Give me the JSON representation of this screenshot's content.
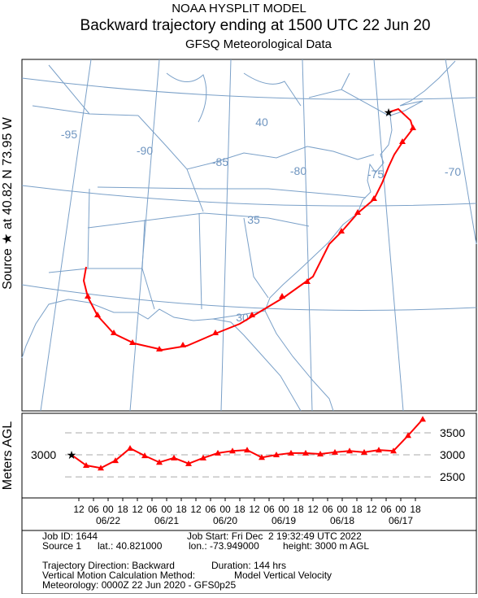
{
  "header": {
    "title": "NOAA HYSPLIT MODEL",
    "subtitle": "Backward trajectory ending at 1500 UTC 22 Jun 20",
    "data_source": "GFSQ Meteorological Data"
  },
  "source_label": "Source ★ at 40.82 N 73.95 W",
  "map": {
    "lon_labels": [
      "-95",
      "-90",
      "-85",
      "-80",
      "-75",
      "-70"
    ],
    "lat_labels": [
      "40",
      "35",
      "30"
    ]
  },
  "height_plot": {
    "type": "line",
    "y_label": "Meters AGL",
    "source_height": 3000,
    "x": [
      0,
      6,
      12,
      18,
      24,
      30,
      36,
      42,
      48,
      54,
      60,
      66,
      72,
      78,
      84,
      90,
      96,
      102,
      108,
      114,
      120,
      126,
      132,
      138,
      144
    ],
    "values": [
      3000,
      2760,
      2700,
      2870,
      3150,
      2980,
      2830,
      2930,
      2800,
      2930,
      3040,
      3090,
      3110,
      2940,
      3000,
      3040,
      3040,
      3020,
      3060,
      3090,
      3060,
      3110,
      3090,
      3440,
      3810
    ],
    "color": "#ff0000",
    "xlim": [
      0,
      144
    ],
    "ylim": [
      2020,
      3945
    ],
    "yticks": [
      2500,
      3000,
      3500
    ],
    "xticks": [
      {
        "value": 3,
        "label": "12"
      },
      {
        "value": 9,
        "label": "06"
      },
      {
        "value": 15,
        "label": "00"
      },
      {
        "value": 21,
        "label": "18"
      },
      {
        "value": 27,
        "label": "12"
      },
      {
        "value": 33,
        "label": "06"
      },
      {
        "value": 39,
        "label": "00"
      },
      {
        "value": 45,
        "label": "18"
      },
      {
        "value": 51,
        "label": "12"
      },
      {
        "value": 57,
        "label": "06"
      },
      {
        "value": 63,
        "label": "00"
      },
      {
        "value": 69,
        "label": "18"
      },
      {
        "value": 75,
        "label": "12"
      },
      {
        "value": 81,
        "label": "06"
      },
      {
        "value": 87,
        "label": "00"
      },
      {
        "value": 93,
        "label": "18"
      },
      {
        "value": 99,
        "label": "12"
      },
      {
        "value": 105,
        "label": "06"
      },
      {
        "value": 111,
        "label": "00"
      },
      {
        "value": 117,
        "label": "18"
      },
      {
        "value": 123,
        "label": "12"
      },
      {
        "value": 129,
        "label": "06"
      },
      {
        "value": 135,
        "label": "00"
      },
      {
        "value": 141,
        "label": "18"
      }
    ],
    "date_ticks": [
      {
        "value": 15,
        "label": "06/22"
      },
      {
        "value": 39,
        "label": "06/21"
      },
      {
        "value": 63,
        "label": "06/20"
      },
      {
        "value": 87,
        "label": "06/19"
      },
      {
        "value": 111,
        "label": "06/18"
      },
      {
        "value": 135,
        "label": "06/17"
      }
    ],
    "grid": true
  },
  "info": {
    "job_id": "Job ID: 1644",
    "job_start": "Job Start: Fri Dec  2 19:32:49 UTC 2022",
    "source": "Source 1",
    "lat": "lat.: 40.821000",
    "lon": "lon.: -73.949000",
    "height": "height: 3000 m AGL",
    "direction": "Trajectory Direction: Backward",
    "duration": "Duration: 144 hrs",
    "vertical_method": "Vertical Motion Calculation Method:",
    "vertical_value": "Model Vertical Velocity",
    "meteorology": "Meteorology: 0000Z 22 Jun 2020 - GFS0p25"
  }
}
